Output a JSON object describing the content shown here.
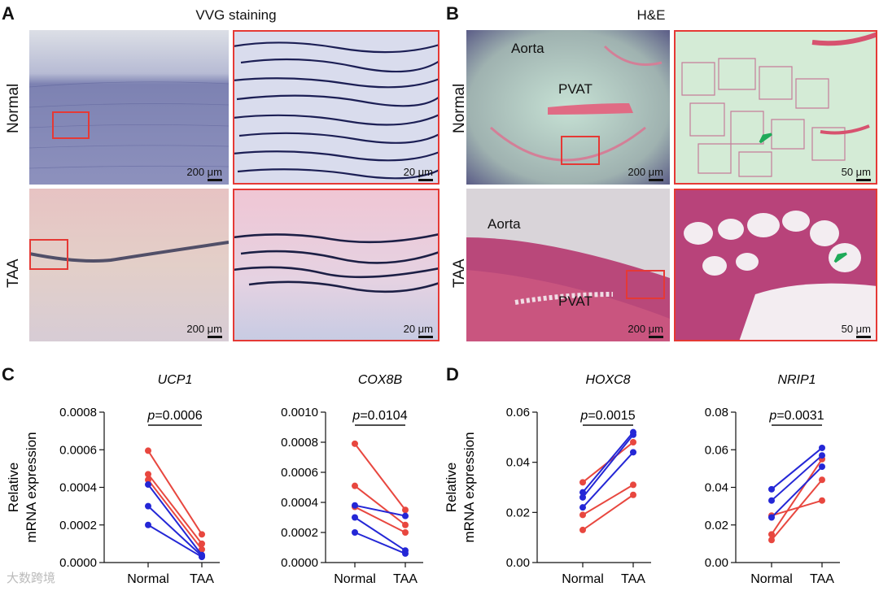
{
  "panels": {
    "A": {
      "letter": "A",
      "title": "VVG staining",
      "row_normal": "Normal",
      "row_taa": "TAA",
      "scale_big": "200 μm",
      "scale_zoom": "20 μm"
    },
    "B": {
      "letter": "B",
      "title": "H&E",
      "row_normal": "Normal",
      "row_taa": "TAA",
      "scale_big": "200 μm",
      "scale_zoom": "50 μm",
      "label_aorta": "Aorta",
      "label_pvat": "PVAT"
    },
    "C": {
      "letter": "C"
    },
    "D": {
      "letter": "D"
    }
  },
  "watermark": "大数跨境",
  "colors": {
    "red": "#e8473f",
    "blue": "#2427d6",
    "box": "#e53935",
    "arrow": "#1faa59"
  },
  "chart_data": [
    {
      "type": "line",
      "gene": "UCP1",
      "ylabel": "Relative\nmRNA expression",
      "categories": [
        "Normal",
        "TAA"
      ],
      "ylim": [
        0,
        0.0008
      ],
      "yticks": [
        "0.0000",
        "0.0002",
        "0.0004",
        "0.0006",
        "0.0008"
      ],
      "pvalue": "p=0.0006",
      "series": [
        {
          "color": "red",
          "values": [
            0.000595,
            0.00015
          ]
        },
        {
          "color": "red",
          "values": [
            0.00047,
            0.0001
          ]
        },
        {
          "color": "red",
          "values": [
            0.00044,
            7e-05
          ]
        },
        {
          "color": "blue",
          "values": [
            0.000415,
            4e-05
          ]
        },
        {
          "color": "blue",
          "values": [
            0.0003,
            3.5e-05
          ]
        },
        {
          "color": "blue",
          "values": [
            0.0002,
            3e-05
          ]
        }
      ]
    },
    {
      "type": "line",
      "gene": "COX8B",
      "ylabel": "",
      "categories": [
        "Normal",
        "TAA"
      ],
      "ylim": [
        0,
        0.001
      ],
      "yticks": [
        "0.0000",
        "0.0002",
        "0.0004",
        "0.0006",
        "0.0008",
        "0.0010"
      ],
      "pvalue": "p=0.0104",
      "series": [
        {
          "color": "red",
          "values": [
            0.00079,
            0.00035
          ]
        },
        {
          "color": "red",
          "values": [
            0.00051,
            0.00025
          ]
        },
        {
          "color": "red",
          "values": [
            0.00037,
            0.0002
          ]
        },
        {
          "color": "blue",
          "values": [
            0.00038,
            0.00031
          ]
        },
        {
          "color": "blue",
          "values": [
            0.0003,
            8e-05
          ]
        },
        {
          "color": "blue",
          "values": [
            0.0002,
            6e-05
          ]
        }
      ]
    },
    {
      "type": "line",
      "gene": "HOXC8",
      "ylabel": "Relative\nmRNA expression",
      "categories": [
        "Normal",
        "TAA"
      ],
      "ylim": [
        0,
        0.06
      ],
      "yticks": [
        "0.00",
        "0.02",
        "0.04",
        "0.06"
      ],
      "pvalue": "p=0.0015",
      "series": [
        {
          "color": "red",
          "values": [
            0.032,
            0.048
          ]
        },
        {
          "color": "red",
          "values": [
            0.019,
            0.031
          ]
        },
        {
          "color": "red",
          "values": [
            0.013,
            0.027
          ]
        },
        {
          "color": "blue",
          "values": [
            0.028,
            0.052
          ]
        },
        {
          "color": "blue",
          "values": [
            0.026,
            0.051
          ]
        },
        {
          "color": "blue",
          "values": [
            0.022,
            0.044
          ]
        }
      ]
    },
    {
      "type": "line",
      "gene": "NRIP1",
      "ylabel": "",
      "categories": [
        "Normal",
        "TAA"
      ],
      "ylim": [
        0,
        0.08
      ],
      "yticks": [
        "0.00",
        "0.02",
        "0.04",
        "0.06",
        "0.08"
      ],
      "pvalue": "p=0.0031",
      "series": [
        {
          "color": "red",
          "values": [
            0.015,
            0.055
          ]
        },
        {
          "color": "red",
          "values": [
            0.012,
            0.044
          ]
        },
        {
          "color": "red",
          "values": [
            0.025,
            0.033
          ]
        },
        {
          "color": "blue",
          "values": [
            0.039,
            0.061
          ]
        },
        {
          "color": "blue",
          "values": [
            0.033,
            0.057
          ]
        },
        {
          "color": "blue",
          "values": [
            0.024,
            0.051
          ]
        }
      ]
    }
  ]
}
